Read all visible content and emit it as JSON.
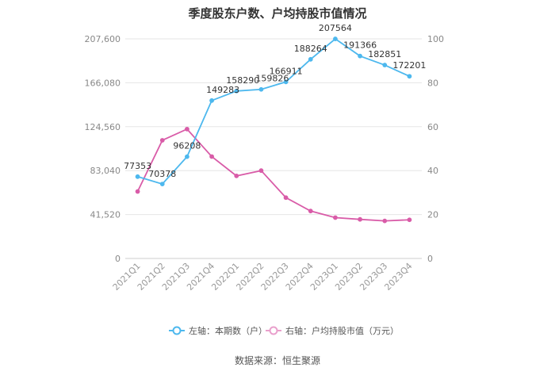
{
  "chart_data": {
    "type": "line",
    "title": "季度股东户数、户均持股市值情况",
    "categories": [
      "2021Q1",
      "2021Q2",
      "2021Q3",
      "2021Q4",
      "2022Q1",
      "2022Q2",
      "2022Q3",
      "2022Q4",
      "2023Q1",
      "2023Q2",
      "2023Q3",
      "2023Q4"
    ],
    "series": [
      {
        "name": "左轴：本期数（户）",
        "axis": "left",
        "color": "#4db8ee",
        "values": [
          77353,
          70378,
          96208,
          149283,
          158290,
          159826,
          166911,
          188264,
          207564,
          191366,
          182851,
          172201
        ],
        "labels": [
          "77353",
          "70378",
          "96208",
          "149283",
          "158290",
          "159826",
          "166911",
          "188264",
          "207564",
          "191366",
          "182851",
          "172201"
        ]
      },
      {
        "name": "右轴：户均持股市值（万元）",
        "axis": "right",
        "color": "#d95ca8",
        "values": [
          30.5,
          53.8,
          58.9,
          46.4,
          37.6,
          40.0,
          27.7,
          21.6,
          18.6,
          17.8,
          17.1,
          17.6
        ]
      }
    ],
    "left_axis": {
      "ylim": [
        0,
        207600
      ],
      "ticks": [
        0,
        41520,
        83040,
        124560,
        166080,
        207600
      ],
      "tick_labels": [
        "0",
        "41,520",
        "83,040",
        "124,560",
        "166,080",
        "207,600"
      ]
    },
    "right_axis": {
      "ylim": [
        0,
        100
      ],
      "ticks": [
        0,
        20,
        40,
        60,
        80,
        100
      ],
      "tick_labels": [
        "0",
        "20",
        "40",
        "60",
        "80",
        "100"
      ]
    },
    "grid": true,
    "legend_position": "bottom-center"
  },
  "source_text": "数据来源：恒生聚源"
}
